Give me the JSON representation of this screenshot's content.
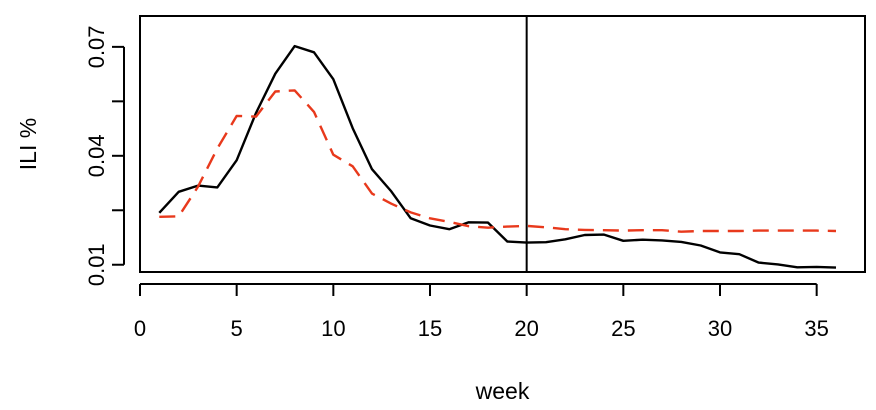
{
  "chart_data": {
    "type": "line",
    "title": "",
    "xlabel": "week",
    "ylabel": "ILI %",
    "xlim": [
      0,
      37.5
    ],
    "ylim": [
      0.008,
      0.0785
    ],
    "x_ticks": [
      0,
      5,
      10,
      15,
      20,
      25,
      30,
      35
    ],
    "x_tick_labels": [
      "0",
      "5",
      "10",
      "15",
      "20",
      "25",
      "30",
      "35"
    ],
    "y_ticks": [
      0.01,
      0.04,
      0.07
    ],
    "y_tick_labels": [
      "0.01",
      "0.04",
      "0.07"
    ],
    "y_minor_ticks": [
      0.01,
      0.025,
      0.04,
      0.055,
      0.07
    ],
    "grid": false,
    "legend": "none",
    "vline_x": 20,
    "series": [
      {
        "color": "#000000",
        "dash": "solid",
        "x": [
          1,
          2,
          3,
          4,
          5,
          6,
          7,
          8,
          9,
          10,
          11,
          12,
          13,
          14,
          15,
          16,
          17,
          18,
          19,
          20,
          21,
          22,
          23,
          24,
          25,
          26,
          27,
          28,
          29,
          30,
          31,
          32,
          33,
          34,
          35,
          36
        ],
        "values": [
          0.0243,
          0.0301,
          0.0318,
          0.0313,
          0.0388,
          0.0518,
          0.0626,
          0.0702,
          0.0685,
          0.0611,
          0.0476,
          0.0363,
          0.0302,
          0.0228,
          0.0208,
          0.0198,
          0.0217,
          0.0216,
          0.0164,
          0.0161,
          0.0162,
          0.017,
          0.0182,
          0.0183,
          0.0166,
          0.0169,
          0.0167,
          0.0163,
          0.0153,
          0.0134,
          0.0129,
          0.0106,
          0.0101,
          0.0093,
          0.0094,
          0.0092
        ]
      },
      {
        "color": "#e8391c",
        "dash": "dashed",
        "x": [
          1,
          2,
          3,
          4,
          5,
          6,
          7,
          8,
          9,
          10,
          11,
          12,
          13,
          14,
          15,
          16,
          17,
          18,
          19,
          20,
          21,
          22,
          23,
          24,
          25,
          26,
          27,
          28,
          29,
          30,
          31,
          32,
          33,
          34,
          35,
          36
        ],
        "values": [
          0.0232,
          0.0233,
          0.0315,
          0.042,
          0.051,
          0.0508,
          0.0577,
          0.058,
          0.0521,
          0.0403,
          0.0371,
          0.0296,
          0.0268,
          0.0244,
          0.0228,
          0.0218,
          0.0206,
          0.0202,
          0.0205,
          0.0207,
          0.0203,
          0.0198,
          0.0196,
          0.0195,
          0.0194,
          0.0195,
          0.0195,
          0.0191,
          0.0193,
          0.0193,
          0.0193,
          0.0194,
          0.0194,
          0.0194,
          0.0194,
          0.0193
        ]
      }
    ]
  }
}
